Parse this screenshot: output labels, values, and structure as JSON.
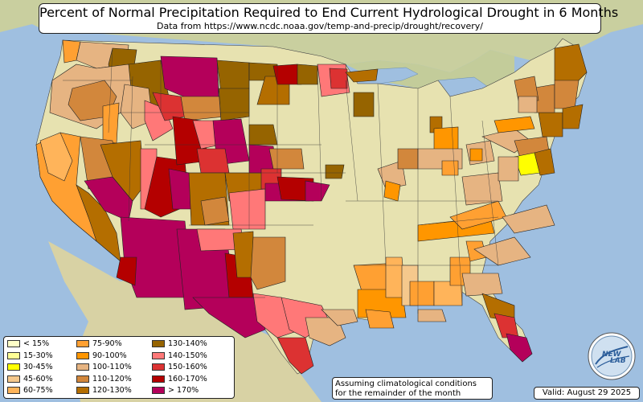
{
  "title": "Percent of Normal Precipitation Required to End Current Hydrological Drought in 6 Months",
  "subtitle": "Data from https://www.ncdc.noaa.gov/temp-and-precip/drought/recovery/",
  "note_line1": "Assuming climatological conditions",
  "note_line2": "for the remainder of the month",
  "valid": "Valid: August 29 2025",
  "logo": {
    "text_top": "NEW",
    "text_bottom": "LAB"
  },
  "colors": {
    "ocean": "#9fbfe0",
    "land": "#e7e2b0",
    "lt15": "#ffffc8",
    "p15_30": "#ffff96",
    "p30_45": "#ffff00",
    "p45_60": "#f5c88c",
    "p60_75": "#ffb45a",
    "p75_90": "#ffa032",
    "p90_100": "#ff9600",
    "p100_110": "#e6b482",
    "p110_120": "#d2873c",
    "p120_130": "#b46e00",
    "p130_140": "#966400",
    "p140_150": "#ff7878",
    "p150_160": "#dc3232",
    "p160_170": "#b40000",
    "gt170": "#b4005a"
  },
  "legend": [
    {
      "label": "< 15%",
      "color": "#ffffc8"
    },
    {
      "label": "15-30%",
      "color": "#ffff96"
    },
    {
      "label": "30-45%",
      "color": "#ffff00"
    },
    {
      "label": "45-60%",
      "color": "#f5c88c"
    },
    {
      "label": "60-75%",
      "color": "#ffb45a"
    },
    {
      "label": "75-90%",
      "color": "#ffa032"
    },
    {
      "label": "90-100%",
      "color": "#ff9600"
    },
    {
      "label": "100-110%",
      "color": "#e6b482"
    },
    {
      "label": "110-120%",
      "color": "#d2873c"
    },
    {
      "label": "120-130%",
      "color": "#b46e00"
    },
    {
      "label": "130-140%",
      "color": "#966400"
    },
    {
      "label": "140-150%",
      "color": "#ff7878"
    },
    {
      "label": "150-160%",
      "color": "#dc3232"
    },
    {
      "label": "160-170%",
      "color": "#b40000"
    },
    {
      "label": "> 170%",
      "color": "#b4005a"
    }
  ]
}
